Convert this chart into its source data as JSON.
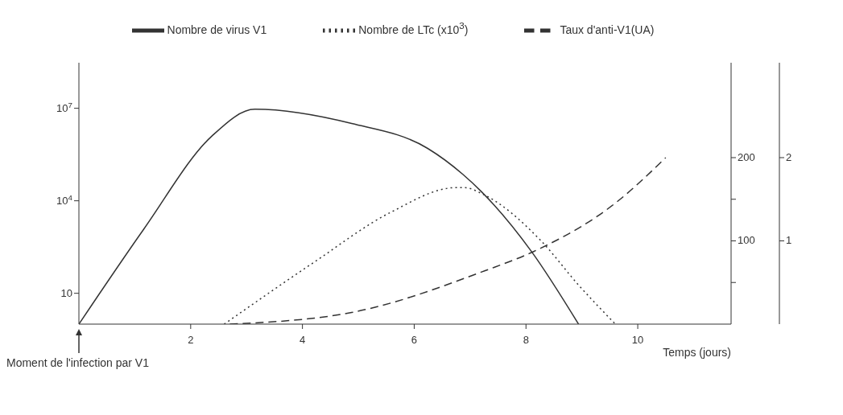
{
  "chart_data": {
    "type": "line",
    "xlabel": "Temps (jours)",
    "legend": "top",
    "xlim": [
      0,
      11.67
    ],
    "xticks": [
      2,
      4,
      6,
      8,
      10
    ],
    "log": "y",
    "ylim": [
      1,
      300000000
    ],
    "yticks": [
      10,
      {
        "value": 10000,
        "label": "10$^{4}$"
      },
      {
        "value": 10000000,
        "label": "10$^{7}$"
      }
    ],
    "y2lim": [
      0,
      314
    ],
    "y2ticks": [
      {
        "value": 50,
        "label": null
      },
      100,
      {
        "value": 150,
        "label": null
      },
      200
    ],
    "y3lim": [
      0,
      3.14
    ],
    "y3ticks": [
      1,
      2
    ],
    "series": [
      {
        "name": "Nombre de virus V1",
        "color": "#333333",
        "line_style": "solid",
        "x": [
          0,
          1.16,
          2.38,
          3.15,
          4.88,
          6.24,
          6.87,
          7.2,
          8.1,
          8.94
        ],
        "values": [
          1,
          1200,
          1260000,
          9300000,
          3200000,
          500000,
          72000,
          20000,
          224,
          1
        ]
      },
      {
        "name": "Nombre de LTc (x10$^{3}$)",
        "color": "#333333",
        "line_style": "dotted",
        "axis": "y2",
        "x": [
          2.6,
          4.2,
          5.57,
          6.75,
          6.9,
          7.26,
          8.27,
          8.94,
          9.6
        ],
        "values": [
          0,
          74,
          134,
          164,
          164,
          155,
          100,
          47,
          0
        ]
      },
      {
        "name": "Taux d'anti-V1(UA)",
        "color": "#333333",
        "line_style": "dashed",
        "axis": "y3",
        "x": [
          2.7,
          4.88,
          7.26,
          8.13,
          9.63,
          10.5
        ],
        "values": [
          0,
          0.14,
          0.64,
          0.87,
          1.47,
          2.0
        ]
      }
    ],
    "annotations": [
      {
        "text": "Moment de l'infection par V1",
        "x": 0,
        "y": 1
      }
    ]
  }
}
